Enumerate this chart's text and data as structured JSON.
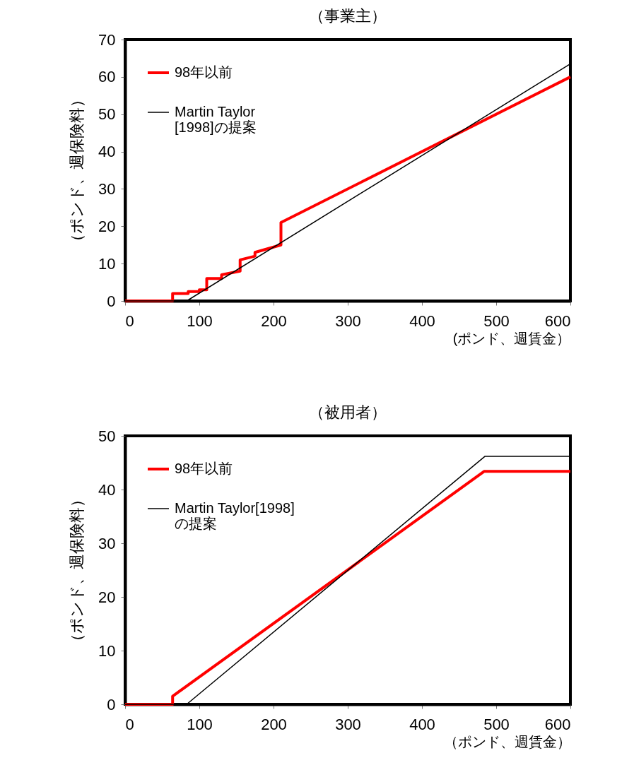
{
  "chart_data": [
    {
      "type": "line",
      "title": "（事業主）",
      "xlabel": "(ポンド、週賃金）",
      "ylabel": "（ポンド、週保険料）",
      "xlim": [
        0,
        600
      ],
      "xticks": [
        0,
        100,
        200,
        300,
        400,
        500,
        600
      ],
      "ylim": [
        0,
        70
      ],
      "yticks": [
        0,
        10,
        20,
        30,
        40,
        50,
        60,
        70
      ],
      "grid": false,
      "legend": "top left",
      "marker": "none",
      "line_style": "solid",
      "series": [
        {
          "name": "98年以前",
          "color": "#ff0000",
          "x": [
            0,
            64,
            64,
            85,
            85,
            100,
            100,
            110,
            110,
            130,
            130,
            155,
            155,
            175,
            175,
            210,
            210,
            600
          ],
          "values": [
            0,
            0,
            2,
            2,
            2.5,
            2.5,
            3,
            3,
            6,
            6,
            7,
            8,
            11,
            12,
            13,
            15,
            21,
            60
          ]
        },
        {
          "name": "Martin  Taylor\n[1998]の提案",
          "color": "#000000",
          "x": [
            0,
            83,
            600
          ],
          "values": [
            0,
            0,
            63.5
          ]
        }
      ]
    },
    {
      "type": "line",
      "title": "（被用者）",
      "xlabel": "（ポンド、週賃金）",
      "ylabel": "（ポンド、週保険料）",
      "xlim": [
        0,
        600
      ],
      "xticks": [
        0,
        100,
        200,
        300,
        400,
        500,
        600
      ],
      "ylim": [
        0,
        50
      ],
      "yticks": [
        0,
        10,
        20,
        30,
        40,
        50
      ],
      "grid": false,
      "legend": "top left",
      "marker": "none",
      "line_style": "solid",
      "series": [
        {
          "name": "98年以前",
          "color": "#ff0000",
          "x": [
            0,
            64,
            64,
            484,
            600
          ],
          "values": [
            0,
            0,
            1.5,
            43.4,
            43.4
          ]
        },
        {
          "name": "Martin Taylor[1998]\nの提案",
          "color": "#000000",
          "x": [
            0,
            83,
            485,
            600
          ],
          "values": [
            0,
            0,
            46.2,
            46.2
          ]
        }
      ]
    }
  ]
}
